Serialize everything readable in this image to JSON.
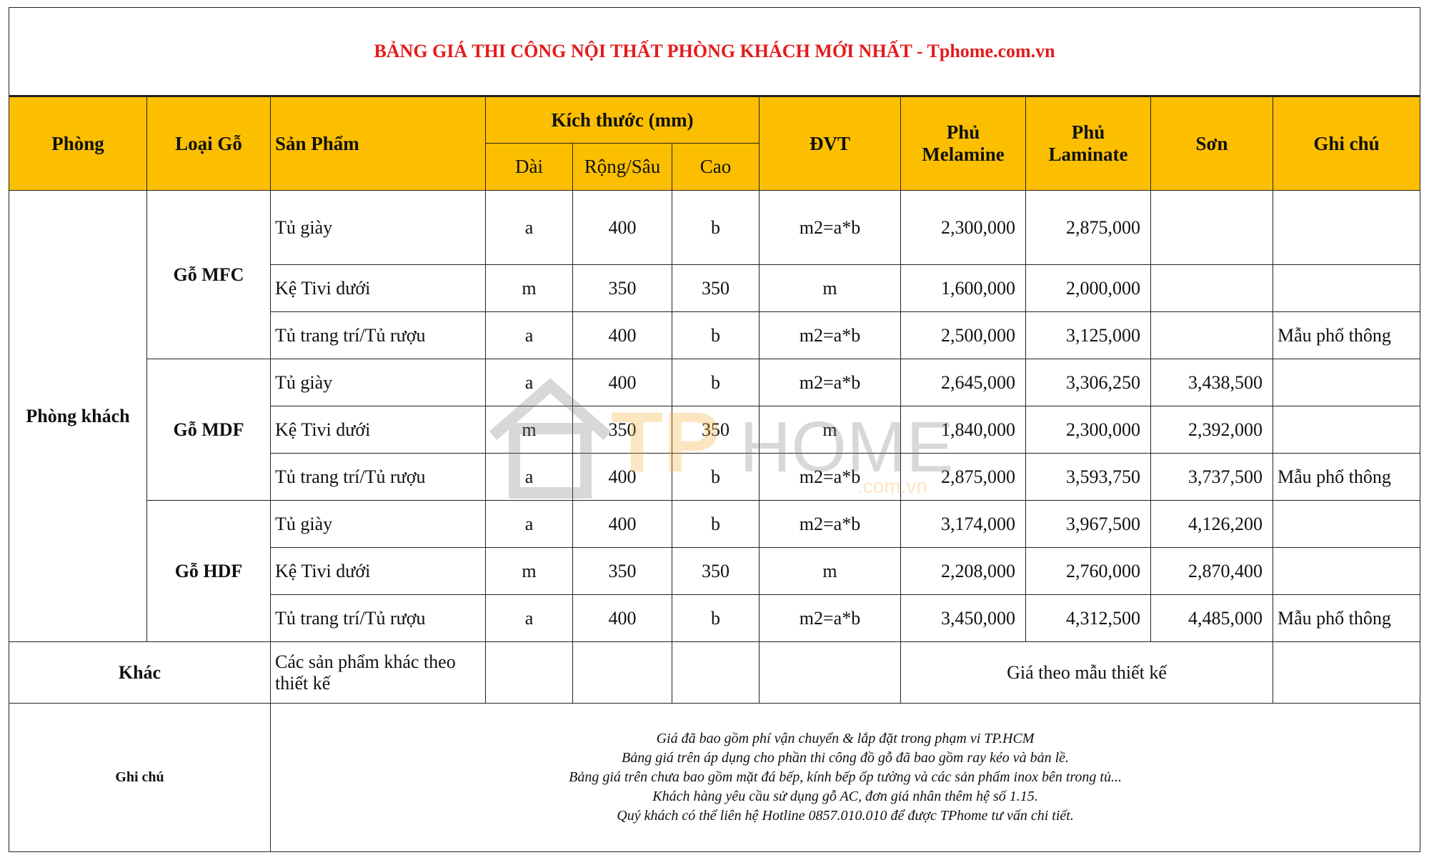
{
  "title": "BẢNG GIÁ THI CÔNG NỘI THẤT PHÒNG KHÁCH MỚI NHẤT - Tphome.com.vn",
  "colors": {
    "title": "#e31b1b",
    "header_bg": "#fcbf00",
    "watermark_orange": "#f5a623"
  },
  "headers": {
    "phong": "Phòng",
    "loai_go": "Loại Gỗ",
    "san_pham": "Sản Phẩm",
    "kich_thuoc": "Kích thước (mm)",
    "dai": "Dài",
    "rong_sau": "Rộng/Sâu",
    "cao": "Cao",
    "dvt": "ĐVT",
    "melamine": "Phủ Melamine",
    "laminate": "Phủ Laminate",
    "son": "Sơn",
    "ghi_chu": "Ghi chú"
  },
  "room": "Phòng khách",
  "groups": [
    {
      "wood": "Gỗ MFC",
      "rows": [
        {
          "product": "Tủ giày",
          "dai": "a",
          "rong": "400",
          "cao": "b",
          "dvt": "m2=a*b",
          "melamine": "2,300,000",
          "laminate": "2,875,000",
          "son": "",
          "note": ""
        },
        {
          "product": "Kệ Tivi dưới",
          "dai": "m",
          "rong": "350",
          "cao": "350",
          "dvt": "m",
          "melamine": "1,600,000",
          "laminate": "2,000,000",
          "son": "",
          "note": ""
        },
        {
          "product": "Tủ trang trí/Tủ rượu",
          "dai": "a",
          "rong": "400",
          "cao": "b",
          "dvt": "m2=a*b",
          "melamine": "2,500,000",
          "laminate": "3,125,000",
          "son": "",
          "note": "Mẫu phổ thông"
        }
      ]
    },
    {
      "wood": "Gỗ MDF",
      "rows": [
        {
          "product": "Tủ giày",
          "dai": "a",
          "rong": "400",
          "cao": "b",
          "dvt": "m2=a*b",
          "melamine": "2,645,000",
          "laminate": "3,306,250",
          "son": "3,438,500",
          "note": ""
        },
        {
          "product": "Kệ Tivi dưới",
          "dai": "m",
          "rong": "350",
          "cao": "350",
          "dvt": "m",
          "melamine": "1,840,000",
          "laminate": "2,300,000",
          "son": "2,392,000",
          "note": ""
        },
        {
          "product": "Tủ trang trí/Tủ rượu",
          "dai": "a",
          "rong": "400",
          "cao": "b",
          "dvt": "m2=a*b",
          "melamine": "2,875,000",
          "laminate": "3,593,750",
          "son": "3,737,500",
          "note": "Mẫu phổ thông"
        }
      ]
    },
    {
      "wood": "Gỗ HDF",
      "rows": [
        {
          "product": "Tủ giày",
          "dai": "a",
          "rong": "400",
          "cao": "b",
          "dvt": "m2=a*b",
          "melamine": "3,174,000",
          "laminate": "3,967,500",
          "son": "4,126,200",
          "note": ""
        },
        {
          "product": "Kệ Tivi dưới",
          "dai": "m",
          "rong": "350",
          "cao": "350",
          "dvt": "m",
          "melamine": "2,208,000",
          "laminate": "2,760,000",
          "son": "2,870,400",
          "note": ""
        },
        {
          "product": "Tủ trang trí/Tủ rượu",
          "dai": "a",
          "rong": "400",
          "cao": "b",
          "dvt": "m2=a*b",
          "melamine": "3,450,000",
          "laminate": "4,312,500",
          "son": "4,485,000",
          "note": "Mẫu phổ thông"
        }
      ]
    }
  ],
  "other": {
    "label": "Khác",
    "product": "Các sản phẩm khác theo thiết kế",
    "price": "Giá theo mẫu thiết kế"
  },
  "notes": {
    "label": "Ghi chú",
    "lines": [
      "Giá đã bao gồm phí vận chuyển & lắp đặt trong phạm vi TP.HCM",
      "Bảng giá trên áp dụng cho phần thi công đồ gỗ đã bao gồm ray kéo và bản lề.",
      "Bảng giá trên chưa bao gồm mặt đá bếp, kính bếp ốp tường và các sản phẩm inox bên trong tủ...",
      "Khách hàng yêu cầu sử dụng gỗ AC, đơn giá nhân thêm hệ số 1.15.",
      "Quý khách có thể liên hệ Hotline 0857.010.010 để được TPhome tư vấn chi tiết."
    ]
  },
  "watermark": {
    "tp": "TP",
    "home": "HOME",
    "domain": ".com.vn"
  }
}
